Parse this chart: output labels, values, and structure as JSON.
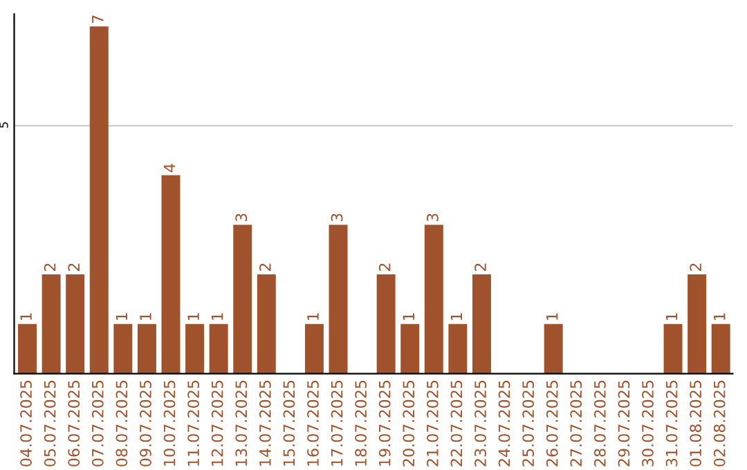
{
  "chart_data": {
    "type": "bar",
    "categories": [
      "04.07.2025",
      "05.07.2025",
      "06.07.2025",
      "07.07.2025",
      "08.07.2025",
      "09.07.2025",
      "10.07.2025",
      "11.07.2025",
      "12.07.2025",
      "13.07.2025",
      "14.07.2025",
      "15.07.2025",
      "16.07.2025",
      "17.07.2025",
      "18.07.2025",
      "19.07.2025",
      "20.07.2025",
      "21.07.2025",
      "22.07.2025",
      "23.07.2025",
      "24.07.2025",
      "25.07.2025",
      "26.07.2025",
      "27.07.2025",
      "28.07.2025",
      "29.07.2025",
      "30.07.2025",
      "31.07.2025",
      "01.08.2025",
      "02.08.2025"
    ],
    "values": [
      1,
      2,
      2,
      7,
      1,
      1,
      4,
      1,
      1,
      3,
      2,
      0,
      1,
      3,
      0,
      2,
      1,
      3,
      1,
      2,
      0,
      0,
      1,
      0,
      0,
      0,
      0,
      1,
      2,
      1
    ],
    "value_labels": [
      "1",
      "2",
      "2",
      "7",
      "1",
      "1",
      "4",
      "1",
      "1",
      "3",
      "2",
      null,
      "1",
      "3",
      null,
      "2",
      "1",
      "3",
      "1",
      "2",
      null,
      null,
      "1",
      null,
      null,
      null,
      null,
      "1",
      "2",
      "1"
    ],
    "color": "#a0522d",
    "ylim": [
      0,
      7.25
    ],
    "yticks": [
      5
    ],
    "grid": "y"
  }
}
